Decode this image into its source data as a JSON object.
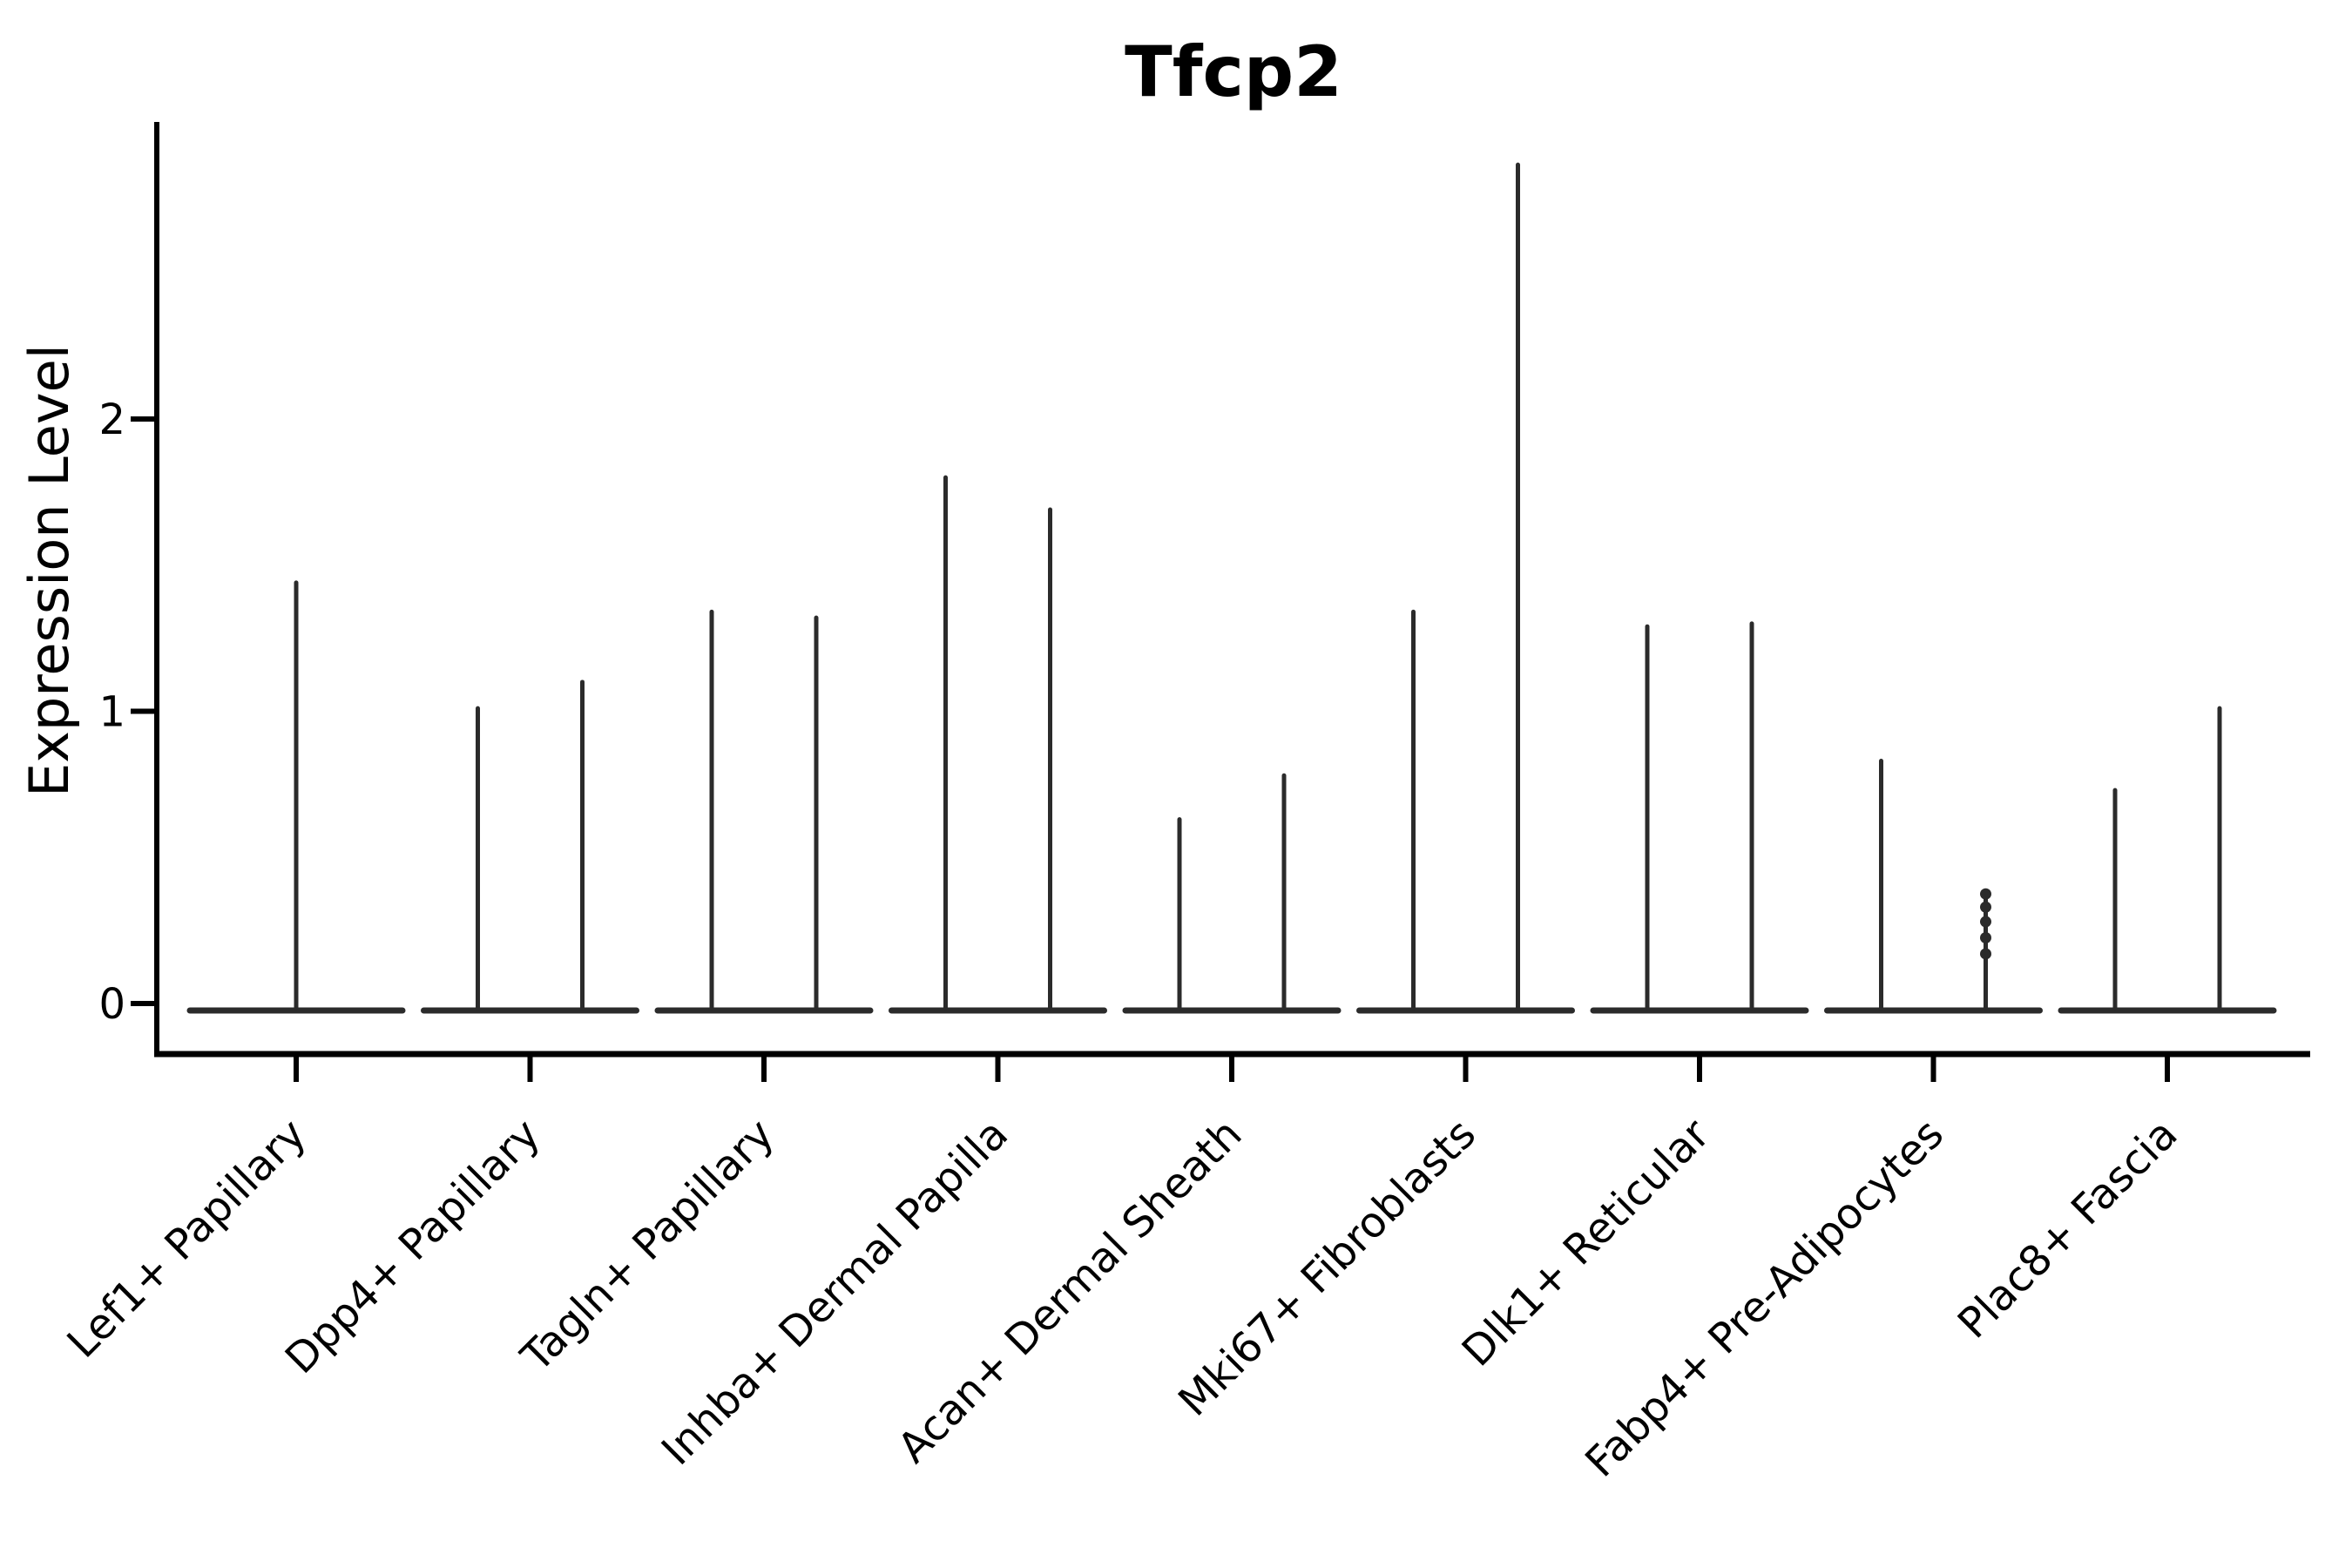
{
  "chart_data": {
    "type": "violin",
    "title": "Tfcp2",
    "ylabel": "Expression Level",
    "xlabel": "",
    "yticks": [
      0,
      1,
      2
    ],
    "ylim": [
      -0.24,
      3.02
    ],
    "grid": false,
    "legend": "none",
    "baseline_value": 0,
    "colors": {
      "violin_stroke": "#2b2b2b",
      "axis": "#000000",
      "text": "#000000",
      "background": "#ffffff"
    },
    "categories": [
      {
        "label": "Lef1+ Papillary",
        "spikes": [
          {
            "pos": "center",
            "max": 1.44
          }
        ]
      },
      {
        "label": "Dpp4+ Papillary",
        "spikes": [
          {
            "pos": "left",
            "max": 1.01
          },
          {
            "pos": "right",
            "max": 1.1
          }
        ]
      },
      {
        "label": "Tagln+ Papillary",
        "spikes": [
          {
            "pos": "left",
            "max": 1.34
          },
          {
            "pos": "right",
            "max": 1.32
          }
        ]
      },
      {
        "label": "Inhba+ Dermal Papilla",
        "spikes": [
          {
            "pos": "left",
            "max": 1.8
          },
          {
            "pos": "right",
            "max": 1.69
          }
        ]
      },
      {
        "label": "Acan+ Dermal Sheath",
        "spikes": [
          {
            "pos": "left",
            "max": 0.63
          },
          {
            "pos": "right",
            "max": 0.78
          }
        ]
      },
      {
        "label": "Mki67+ Fibroblasts",
        "spikes": [
          {
            "pos": "left",
            "max": 1.34
          },
          {
            "pos": "right",
            "max": 2.87
          }
        ]
      },
      {
        "label": "Dlk1+ Reticular",
        "spikes": [
          {
            "pos": "left",
            "max": 1.29
          },
          {
            "pos": "right",
            "max": 1.3
          }
        ]
      },
      {
        "label": "Fabp4+ Pre-Adipocytes",
        "spikes": [
          {
            "pos": "left",
            "max": 0.83
          },
          {
            "pos": "right",
            "max": 0.38,
            "dots": [
              0.375,
              0.33,
              0.28,
              0.225,
              0.17
            ]
          }
        ]
      },
      {
        "label": "Plac8+ Fascia",
        "spikes": [
          {
            "pos": "left",
            "max": 0.73
          },
          {
            "pos": "right",
            "max": 1.01
          }
        ]
      }
    ]
  }
}
